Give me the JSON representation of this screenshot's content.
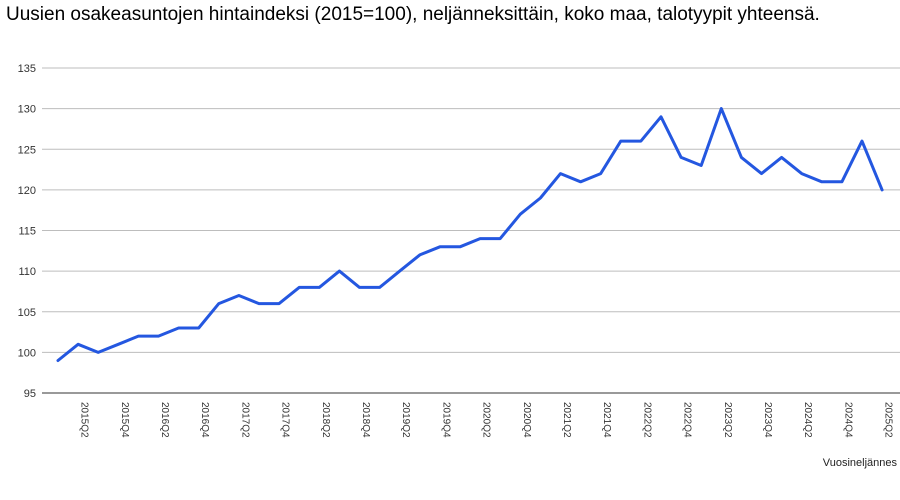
{
  "chart_data": {
    "type": "line",
    "title": "Uusien osakeasuntojen hintaindeksi (2015=100), neljänneksittäin, koko maa, talotyypit yhteensä.",
    "xlabel": "Vuosineljännes",
    "ylabel": "",
    "ylim": [
      95,
      135
    ],
    "yticks": [
      95,
      100,
      105,
      110,
      115,
      120,
      125,
      130,
      135
    ],
    "grid": true,
    "line_color": "#2457e0",
    "x": [
      "2015Q1",
      "2015Q2",
      "2015Q3",
      "2015Q4",
      "2016Q1",
      "2016Q2",
      "2016Q3",
      "2016Q4",
      "2017Q1",
      "2017Q2",
      "2017Q3",
      "2017Q4",
      "2018Q1",
      "2018Q2",
      "2018Q3",
      "2018Q4",
      "2019Q1",
      "2019Q2",
      "2019Q3",
      "2019Q4",
      "2020Q1",
      "2020Q2",
      "2020Q3",
      "2020Q4",
      "2021Q1",
      "2021Q2",
      "2021Q3",
      "2021Q4",
      "2022Q1",
      "2022Q2",
      "2022Q3",
      "2022Q4",
      "2023Q1",
      "2023Q2",
      "2023Q3",
      "2023Q4",
      "2024Q1",
      "2024Q2",
      "2024Q3",
      "2024Q4",
      "2025Q1",
      "2025Q2"
    ],
    "xtick_labels": [
      "2015Q2",
      "2015Q4",
      "2016Q2",
      "2016Q4",
      "2017Q2",
      "2017Q4",
      "2018Q2",
      "2018Q4",
      "2019Q2",
      "2019Q4",
      "2020Q2",
      "2020Q4",
      "2021Q2",
      "2021Q4",
      "2022Q2",
      "2022Q4",
      "2023Q2",
      "2023Q4",
      "2024Q2",
      "2024Q4",
      "2025Q2"
    ],
    "values": [
      99,
      101,
      100,
      101,
      102,
      102,
      103,
      103,
      106,
      107,
      106,
      106,
      108,
      108,
      110,
      108,
      108,
      110,
      112,
      113,
      113,
      114,
      114,
      117,
      119,
      122,
      121,
      122,
      126,
      126,
      129,
      124,
      123,
      130,
      124,
      122,
      124,
      122,
      121,
      121,
      126,
      120
    ]
  }
}
